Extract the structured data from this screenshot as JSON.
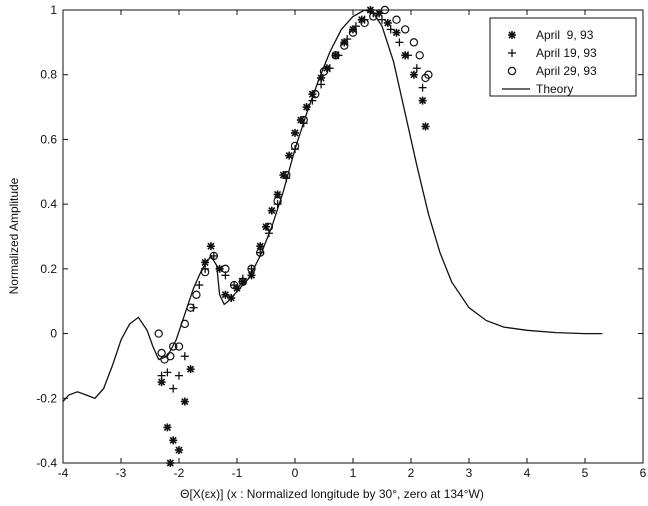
{
  "chart_data": {
    "type": "scatter",
    "title": "",
    "xlabel": "Θ[X(εx)]    (x : Normalized longitude by 30°, zero at 134°W)",
    "ylabel": "Normalized Amplitude",
    "xlim": [
      -4,
      6
    ],
    "ylim": [
      -0.4,
      1
    ],
    "xticks": [
      "-4",
      "-3",
      "-2",
      "-1",
      "0",
      "1",
      "2",
      "3",
      "4",
      "5",
      "6"
    ],
    "yticks": [
      "-0.4",
      "-0.2",
      "0",
      "0.2",
      "0.4",
      "0.6",
      "0.8",
      "1"
    ],
    "grid": false,
    "legend_position": "top-right",
    "series": [
      {
        "name": "April  9, 93",
        "marker": "asterisk",
        "points": [
          [
            -2.3,
            -0.15
          ],
          [
            -2.2,
            -0.29
          ],
          [
            -2.15,
            -0.4
          ],
          [
            -2.1,
            -0.33
          ],
          [
            -2.0,
            -0.36
          ],
          [
            -1.9,
            -0.21
          ],
          [
            -1.8,
            -0.11
          ],
          [
            -1.55,
            0.22
          ],
          [
            -1.45,
            0.27
          ],
          [
            -1.3,
            0.2
          ],
          [
            -1.2,
            0.12
          ],
          [
            -1.1,
            0.11
          ],
          [
            -1.0,
            0.14
          ],
          [
            -0.9,
            0.16
          ],
          [
            -0.75,
            0.18
          ],
          [
            -0.6,
            0.27
          ],
          [
            -0.5,
            0.33
          ],
          [
            -0.4,
            0.38
          ],
          [
            -0.3,
            0.43
          ],
          [
            -0.2,
            0.49
          ],
          [
            -0.1,
            0.55
          ],
          [
            0.0,
            0.62
          ],
          [
            0.1,
            0.66
          ],
          [
            0.2,
            0.7
          ],
          [
            0.3,
            0.74
          ],
          [
            0.45,
            0.79
          ],
          [
            0.55,
            0.82
          ],
          [
            0.7,
            0.86
          ],
          [
            0.85,
            0.9
          ],
          [
            1.0,
            0.94
          ],
          [
            1.15,
            0.97
          ],
          [
            1.3,
            1.0
          ],
          [
            1.45,
            0.99
          ],
          [
            1.6,
            0.96
          ],
          [
            1.75,
            0.93
          ],
          [
            1.9,
            0.86
          ],
          [
            2.05,
            0.8
          ],
          [
            2.2,
            0.72
          ],
          [
            2.25,
            0.64
          ]
        ]
      },
      {
        "name": "April 19, 93",
        "marker": "plus",
        "points": [
          [
            -2.3,
            -0.13
          ],
          [
            -2.2,
            -0.12
          ],
          [
            -2.1,
            -0.17
          ],
          [
            -2.0,
            -0.13
          ],
          [
            -1.9,
            -0.07
          ],
          [
            -1.75,
            0.08
          ],
          [
            -1.65,
            0.15
          ],
          [
            -1.55,
            0.2
          ],
          [
            -1.4,
            0.24
          ],
          [
            -1.2,
            0.18
          ],
          [
            -1.05,
            0.15
          ],
          [
            -0.9,
            0.17
          ],
          [
            -0.75,
            0.2
          ],
          [
            -0.6,
            0.25
          ],
          [
            -0.45,
            0.31
          ],
          [
            -0.3,
            0.4
          ],
          [
            -0.15,
            0.48
          ],
          [
            0.0,
            0.57
          ],
          [
            0.15,
            0.65
          ],
          [
            0.3,
            0.72
          ],
          [
            0.45,
            0.77
          ],
          [
            0.6,
            0.82
          ],
          [
            0.75,
            0.86
          ],
          [
            0.9,
            0.91
          ],
          [
            1.05,
            0.95
          ],
          [
            1.2,
            0.97
          ],
          [
            1.35,
            0.99
          ],
          [
            1.5,
            0.97
          ],
          [
            1.65,
            0.94
          ],
          [
            1.8,
            0.9
          ],
          [
            1.95,
            0.86
          ],
          [
            2.1,
            0.82
          ],
          [
            2.2,
            0.76
          ]
        ]
      },
      {
        "name": "April 29, 93",
        "marker": "circle",
        "points": [
          [
            -2.35,
            0.0
          ],
          [
            -2.3,
            -0.06
          ],
          [
            -2.25,
            -0.08
          ],
          [
            -2.15,
            -0.07
          ],
          [
            -2.1,
            -0.04
          ],
          [
            -2.0,
            -0.04
          ],
          [
            -1.9,
            0.03
          ],
          [
            -1.8,
            0.08
          ],
          [
            -1.7,
            0.12
          ],
          [
            -1.55,
            0.19
          ],
          [
            -1.4,
            0.24
          ],
          [
            -1.2,
            0.2
          ],
          [
            -1.05,
            0.15
          ],
          [
            -0.9,
            0.16
          ],
          [
            -0.75,
            0.2
          ],
          [
            -0.6,
            0.25
          ],
          [
            -0.45,
            0.33
          ],
          [
            -0.3,
            0.41
          ],
          [
            -0.15,
            0.49
          ],
          [
            0.0,
            0.58
          ],
          [
            0.15,
            0.66
          ],
          [
            0.35,
            0.74
          ],
          [
            0.5,
            0.81
          ],
          [
            0.7,
            0.86
          ],
          [
            0.85,
            0.89
          ],
          [
            1.0,
            0.93
          ],
          [
            1.2,
            0.96
          ],
          [
            1.35,
            0.98
          ],
          [
            1.55,
            1.0
          ],
          [
            1.75,
            0.97
          ],
          [
            1.9,
            0.94
          ],
          [
            2.05,
            0.9
          ],
          [
            2.15,
            0.86
          ],
          [
            2.25,
            0.79
          ],
          [
            2.3,
            0.8
          ]
        ]
      },
      {
        "name": "Theory",
        "marker": "line",
        "points": [
          [
            -4.0,
            -0.21
          ],
          [
            -3.9,
            -0.19
          ],
          [
            -3.75,
            -0.18
          ],
          [
            -3.6,
            -0.19
          ],
          [
            -3.45,
            -0.2
          ],
          [
            -3.3,
            -0.17
          ],
          [
            -3.15,
            -0.1
          ],
          [
            -3.0,
            -0.02
          ],
          [
            -2.85,
            0.03
          ],
          [
            -2.7,
            0.05
          ],
          [
            -2.55,
            0.01
          ],
          [
            -2.45,
            -0.04
          ],
          [
            -2.35,
            -0.08
          ],
          [
            -2.2,
            -0.07
          ],
          [
            -2.05,
            -0.02
          ],
          [
            -1.9,
            0.06
          ],
          [
            -1.75,
            0.14
          ],
          [
            -1.6,
            0.2
          ],
          [
            -1.45,
            0.24
          ],
          [
            -1.35,
            0.21
          ],
          [
            -1.3,
            0.12
          ],
          [
            -1.22,
            0.09
          ],
          [
            -1.15,
            0.1
          ],
          [
            -1.0,
            0.13
          ],
          [
            -0.8,
            0.17
          ],
          [
            -0.6,
            0.24
          ],
          [
            -0.4,
            0.33
          ],
          [
            -0.2,
            0.44
          ],
          [
            0.0,
            0.57
          ],
          [
            0.2,
            0.68
          ],
          [
            0.4,
            0.78
          ],
          [
            0.6,
            0.87
          ],
          [
            0.8,
            0.94
          ],
          [
            1.0,
            0.98
          ],
          [
            1.2,
            1.0
          ],
          [
            1.35,
            0.99
          ],
          [
            1.5,
            0.95
          ],
          [
            1.7,
            0.84
          ],
          [
            1.9,
            0.68
          ],
          [
            2.1,
            0.52
          ],
          [
            2.3,
            0.37
          ],
          [
            2.5,
            0.25
          ],
          [
            2.7,
            0.16
          ],
          [
            3.0,
            0.08
          ],
          [
            3.3,
            0.04
          ],
          [
            3.6,
            0.02
          ],
          [
            4.0,
            0.01
          ],
          [
            4.5,
            0.003
          ],
          [
            5.0,
            0.0
          ],
          [
            5.3,
            0.0
          ]
        ]
      }
    ]
  }
}
